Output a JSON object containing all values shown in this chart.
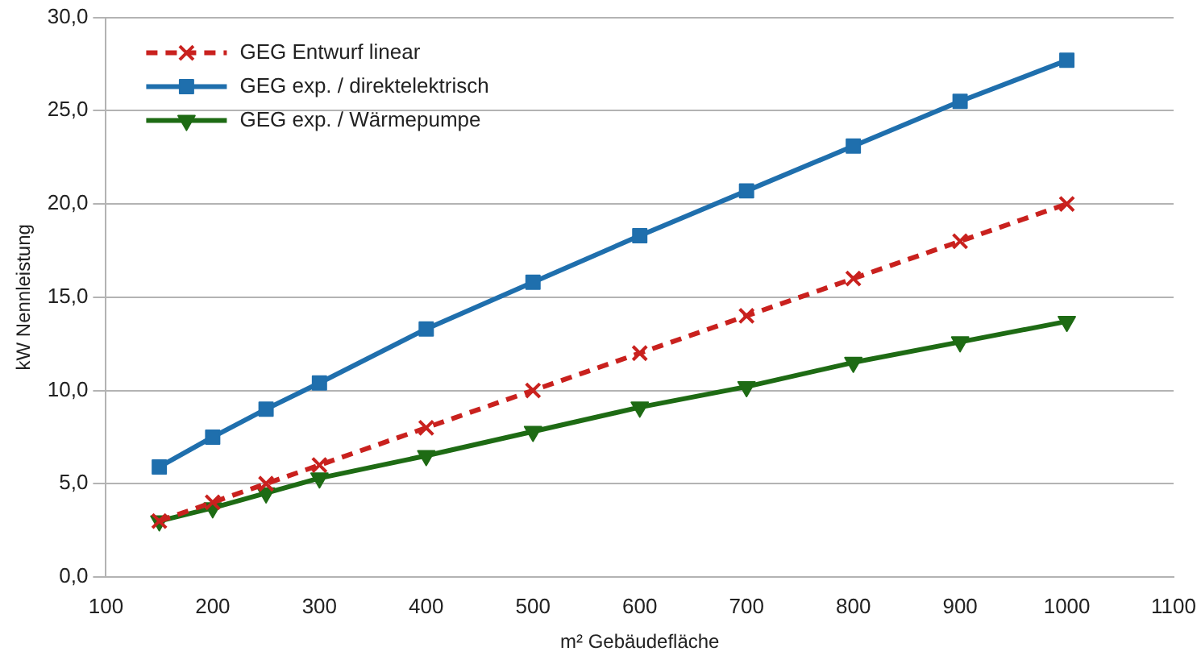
{
  "chart_data": {
    "type": "line",
    "xlabel": "m² Gebäudefläche",
    "ylabel": "kW Nennleistung",
    "x": [
      150,
      200,
      250,
      300,
      400,
      500,
      600,
      700,
      800,
      900,
      1000
    ],
    "series": [
      {
        "name": "GEG Entwurf linear",
        "color": "#c9211e",
        "marker": "cross",
        "line_style": "dashed",
        "values": [
          3,
          4,
          5,
          6,
          8,
          10,
          12,
          14,
          16,
          18,
          20
        ]
      },
      {
        "name": "GEG exp. / direktelektrisch",
        "color": "#1f6fad",
        "marker": "square",
        "line_style": "solid",
        "values": [
          5.9,
          7.5,
          9.0,
          10.4,
          13.3,
          15.8,
          18.3,
          20.7,
          23.1,
          25.5,
          27.7
        ]
      },
      {
        "name": "GEG exp. / Wärmepumpe",
        "color": "#1e6b14",
        "marker": "triangle",
        "line_style": "solid",
        "values": [
          3.0,
          3.7,
          4.5,
          5.3,
          6.5,
          7.8,
          9.1,
          10.2,
          11.5,
          12.6,
          13.7
        ]
      }
    ],
    "xlim": [
      100,
      1100
    ],
    "xticks": [
      100,
      200,
      300,
      400,
      500,
      600,
      700,
      800,
      900,
      1000,
      1100
    ],
    "ylim": [
      0,
      30
    ],
    "yticks": [
      {
        "value": 0,
        "label": "0,0"
      },
      {
        "value": 5,
        "label": "5,0"
      },
      {
        "value": 10,
        "label": "10,0"
      },
      {
        "value": 15,
        "label": "15,0"
      },
      {
        "value": 20,
        "label": "20,0"
      },
      {
        "value": 25,
        "label": "25,0"
      },
      {
        "value": 30,
        "label": "30,0"
      }
    ],
    "grid": "y",
    "legend": "top left"
  }
}
